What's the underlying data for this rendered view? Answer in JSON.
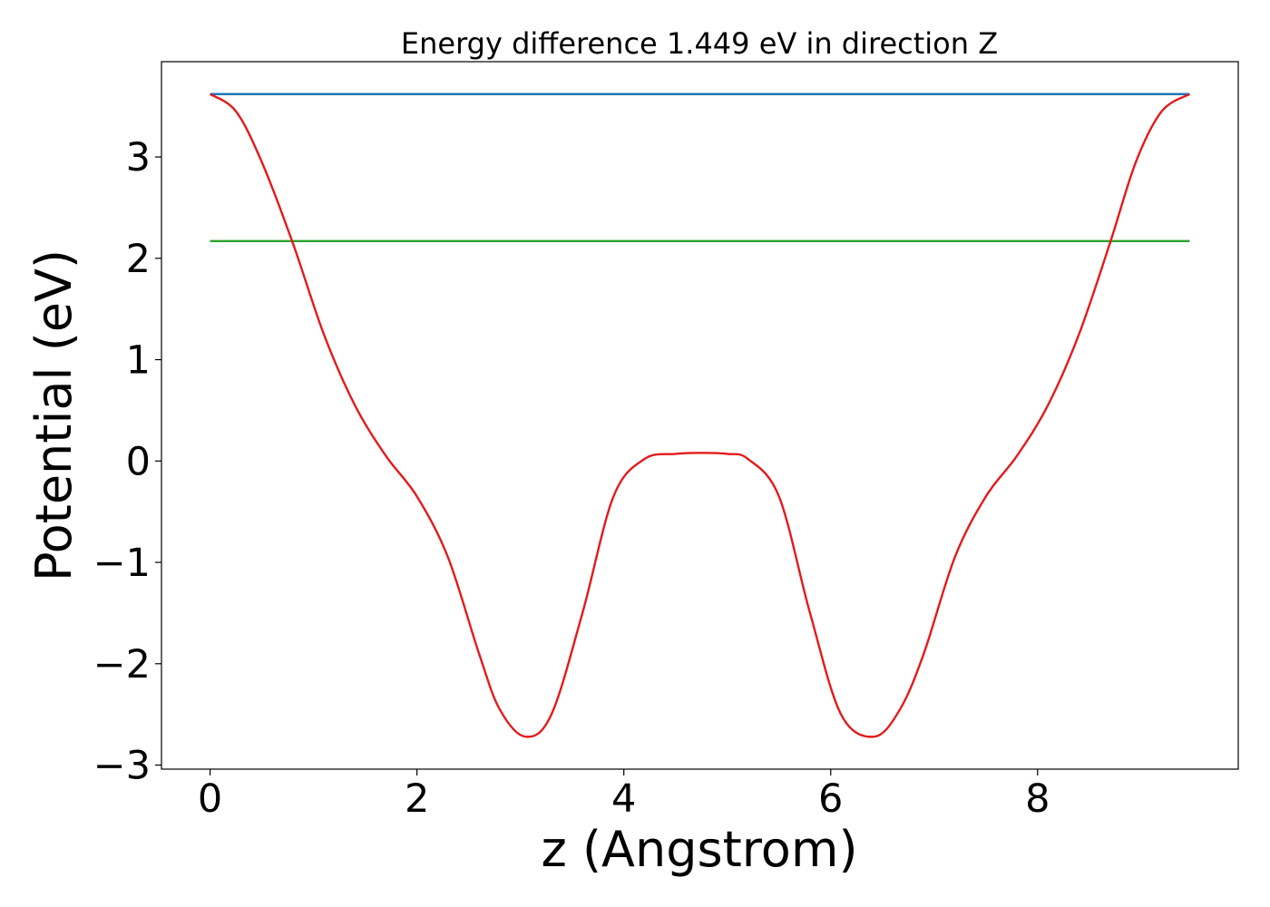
{
  "chart_data": {
    "type": "line",
    "title": "Energy difference 1.449 eV in direction Z",
    "xlabel": "z (Angstrom)",
    "ylabel": "Potential (eV)",
    "xlim": [
      -0.47,
      9.94
    ],
    "ylim": [
      -3.04,
      3.94
    ],
    "xticks": [
      0,
      2,
      4,
      6,
      8
    ],
    "xtick_labels": [
      "0",
      "2",
      "4",
      "6",
      "8"
    ],
    "yticks": [
      -3,
      -2,
      -1,
      0,
      1,
      2,
      3
    ],
    "ytick_labels": [
      "−3",
      "−2",
      "−1",
      "0",
      "1",
      "2",
      "3"
    ],
    "grid": false,
    "legend": "none",
    "series": [
      {
        "color": "#1f77b4",
        "x": [
          0,
          9.47
        ],
        "y": [
          3.62,
          3.62
        ]
      },
      {
        "color": "#2ca02c",
        "x": [
          0,
          9.47
        ],
        "y": [
          2.17,
          2.17
        ]
      },
      {
        "color": "#e31a1c",
        "x": [
          0,
          0.25,
          0.5,
          0.8,
          1.1,
          1.4,
          1.7,
          2.0,
          2.3,
          2.6,
          2.8,
          3.05,
          3.3,
          3.6,
          3.9,
          4.2,
          4.5,
          4.75,
          5.0,
          5.2,
          5.5,
          5.8,
          6.1,
          6.42,
          6.67,
          6.9,
          7.2,
          7.5,
          7.8,
          8.1,
          8.4,
          8.7,
          8.95,
          9.2,
          9.47
        ],
        "y": [
          3.62,
          3.45,
          2.95,
          2.15,
          1.25,
          0.55,
          0.05,
          -0.35,
          -0.95,
          -1.9,
          -2.45,
          -2.72,
          -2.5,
          -1.5,
          -0.35,
          0.02,
          0.07,
          0.08,
          0.07,
          0.02,
          -0.35,
          -1.5,
          -2.5,
          -2.72,
          -2.45,
          -1.9,
          -0.95,
          -0.35,
          0.05,
          0.55,
          1.25,
          2.15,
          2.95,
          3.45,
          3.62
        ]
      }
    ]
  }
}
